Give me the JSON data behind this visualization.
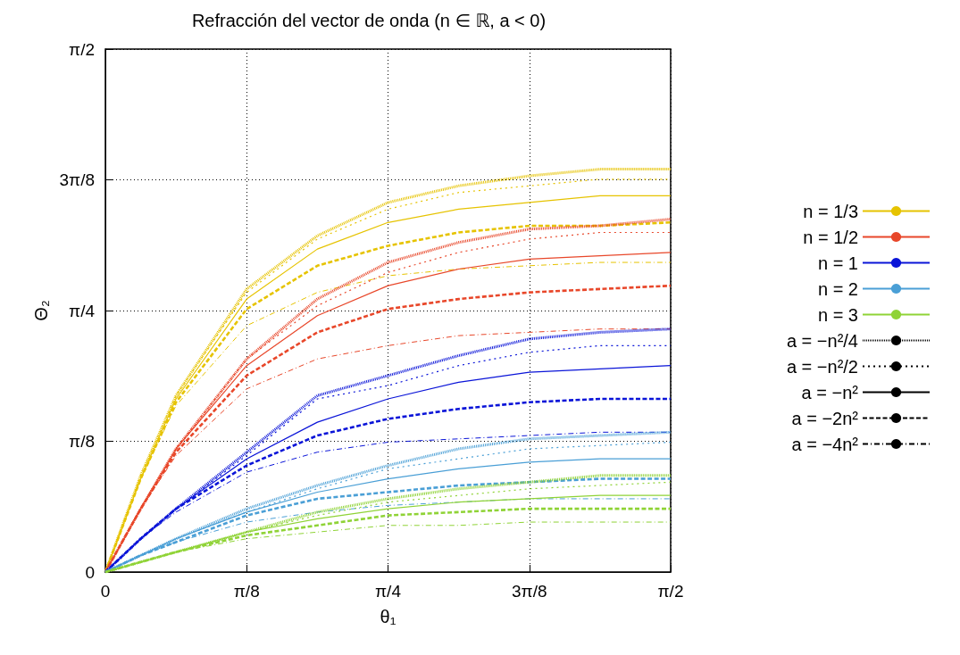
{
  "chart_data": {
    "type": "line",
    "title": "Refracción del vector de onda (n ∈ ℝ, a < 0)",
    "xlabel": "θ₁",
    "ylabel": "Θ₂",
    "x": [
      0,
      0.0982,
      0.1963,
      0.3927,
      0.589,
      0.7854,
      0.9817,
      1.1781,
      1.3744,
      1.5708
    ],
    "xlim": [
      0,
      1.5708
    ],
    "xticks": [
      0,
      {
        "value": 0.3927,
        "label": "π/8"
      },
      {
        "value": 0.7854,
        "label": "π/4"
      },
      {
        "value": 1.1781,
        "label": "3π/8"
      },
      {
        "value": 1.5708,
        "label": "π/2"
      }
    ],
    "ylim": [
      0,
      1.5708
    ],
    "yticks": [
      0,
      {
        "value": 0.3927,
        "label": "π/8"
      },
      {
        "value": 0.7854,
        "label": "π/4"
      },
      {
        "value": 1.1781,
        "label": "3π/8"
      },
      {
        "value": 1.5708,
        "label": "π/2"
      }
    ],
    "grid": true,
    "legend": "right",
    "marker": "none",
    "series": [
      {
        "color": "#e6c300",
        "line_style": "densely_dotted",
        "values": [
          0,
          0.29,
          0.53,
          0.85,
          1.01,
          1.11,
          1.16,
          1.19,
          1.21,
          1.21
        ]
      },
      {
        "color": "#e6c300",
        "line_style": "dotted",
        "values": [
          0,
          0.29,
          0.53,
          0.84,
          1.0,
          1.09,
          1.14,
          1.16,
          1.18,
          1.18
        ]
      },
      {
        "name": "n = 1/3",
        "color": "#e6c300",
        "line_style": "solid",
        "values": [
          0,
          0.28,
          0.52,
          0.82,
          0.97,
          1.05,
          1.09,
          1.11,
          1.13,
          1.13
        ]
      },
      {
        "color": "#e6c300",
        "line_style": "dashed",
        "values": [
          0,
          0.28,
          0.51,
          0.79,
          0.92,
          0.98,
          1.02,
          1.04,
          1.04,
          1.05
        ]
      },
      {
        "color": "#e6c300",
        "line_style": "dashdot",
        "values": [
          0,
          0.28,
          0.5,
          0.74,
          0.84,
          0.89,
          0.91,
          0.92,
          0.93,
          0.93
        ]
      },
      {
        "color": "#e8472a",
        "line_style": "densely_dotted",
        "values": [
          0,
          0.19,
          0.37,
          0.64,
          0.82,
          0.93,
          0.99,
          1.03,
          1.04,
          1.06
        ]
      },
      {
        "color": "#e8472a",
        "line_style": "dotted",
        "values": [
          0,
          0.19,
          0.37,
          0.64,
          0.8,
          0.9,
          0.96,
          1.0,
          1.02,
          1.02
        ]
      },
      {
        "name": "n = 1/2",
        "color": "#e8472a",
        "line_style": "solid",
        "values": [
          0,
          0.19,
          0.37,
          0.62,
          0.77,
          0.86,
          0.91,
          0.94,
          0.95,
          0.96
        ]
      },
      {
        "color": "#e8472a",
        "line_style": "dashed",
        "values": [
          0,
          0.19,
          0.36,
          0.59,
          0.72,
          0.79,
          0.82,
          0.84,
          0.85,
          0.86
        ]
      },
      {
        "color": "#e8472a",
        "line_style": "dashdot",
        "values": [
          0,
          0.19,
          0.35,
          0.55,
          0.64,
          0.68,
          0.71,
          0.72,
          0.73,
          0.73
        ]
      },
      {
        "color": "#0a14d8",
        "line_style": "densely_dotted",
        "values": [
          0,
          0.1,
          0.19,
          0.36,
          0.53,
          0.59,
          0.65,
          0.7,
          0.72,
          0.73
        ]
      },
      {
        "color": "#0a14d8",
        "line_style": "dotted",
        "values": [
          0,
          0.1,
          0.19,
          0.35,
          0.52,
          0.56,
          0.62,
          0.66,
          0.68,
          0.68
        ]
      },
      {
        "name": "n = 1",
        "color": "#0a14d8",
        "line_style": "solid",
        "values": [
          0,
          0.1,
          0.19,
          0.34,
          0.45,
          0.52,
          0.57,
          0.6,
          0.61,
          0.62
        ]
      },
      {
        "color": "#0a14d8",
        "line_style": "dashed",
        "values": [
          0,
          0.1,
          0.19,
          0.32,
          0.41,
          0.46,
          0.49,
          0.51,
          0.52,
          0.52
        ]
      },
      {
        "color": "#0a14d8",
        "line_style": "dashdot",
        "values": [
          0,
          0.1,
          0.18,
          0.3,
          0.36,
          0.39,
          0.4,
          0.41,
          0.42,
          0.42
        ]
      },
      {
        "color": "#4a9fd6",
        "line_style": "densely_dotted",
        "values": [
          0,
          0.05,
          0.1,
          0.19,
          0.26,
          0.32,
          0.37,
          0.4,
          0.41,
          0.42
        ]
      },
      {
        "color": "#4a9fd6",
        "line_style": "dotted",
        "values": [
          0,
          0.05,
          0.1,
          0.18,
          0.25,
          0.31,
          0.34,
          0.37,
          0.38,
          0.39
        ]
      },
      {
        "name": "n = 2",
        "color": "#4a9fd6",
        "line_style": "solid",
        "values": [
          0,
          0.05,
          0.1,
          0.18,
          0.24,
          0.28,
          0.31,
          0.33,
          0.34,
          0.34
        ]
      },
      {
        "color": "#4a9fd6",
        "line_style": "dashed",
        "values": [
          0,
          0.05,
          0.09,
          0.17,
          0.22,
          0.24,
          0.26,
          0.27,
          0.28,
          0.28
        ]
      },
      {
        "color": "#4a9fd6",
        "line_style": "dashdot",
        "values": [
          0,
          0.05,
          0.09,
          0.15,
          0.18,
          0.2,
          0.21,
          0.22,
          0.22,
          0.22
        ]
      },
      {
        "color": "#8fd336",
        "line_style": "densely_dotted",
        "values": [
          0,
          0.03,
          0.06,
          0.12,
          0.18,
          0.22,
          0.25,
          0.27,
          0.29,
          0.29
        ]
      },
      {
        "color": "#8fd336",
        "line_style": "dotted",
        "values": [
          0,
          0.03,
          0.06,
          0.12,
          0.17,
          0.21,
          0.23,
          0.25,
          0.26,
          0.27
        ]
      },
      {
        "name": "n = 3",
        "color": "#8fd336",
        "line_style": "solid",
        "values": [
          0,
          0.03,
          0.06,
          0.12,
          0.16,
          0.19,
          0.21,
          0.22,
          0.23,
          0.23
        ]
      },
      {
        "color": "#8fd336",
        "line_style": "dashed",
        "values": [
          0,
          0.03,
          0.06,
          0.11,
          0.14,
          0.17,
          0.18,
          0.19,
          0.19,
          0.19
        ]
      },
      {
        "color": "#8fd336",
        "line_style": "dashdot",
        "values": [
          0,
          0.03,
          0.06,
          0.1,
          0.12,
          0.14,
          0.14,
          0.15,
          0.15,
          0.15
        ]
      },
      {
        "name": "a = −n²/4",
        "color": "#000000",
        "line_style": "densely_dotted",
        "values": [
          null,
          null,
          null,
          null,
          null,
          null,
          null,
          null,
          null,
          null
        ]
      },
      {
        "name": "a = −n²/2",
        "color": "#000000",
        "line_style": "dotted",
        "values": [
          null,
          null,
          null,
          null,
          null,
          null,
          null,
          null,
          null,
          null
        ]
      },
      {
        "name": "a = −n²",
        "color": "#000000",
        "line_style": "solid",
        "values": [
          null,
          null,
          null,
          null,
          null,
          null,
          null,
          null,
          null,
          null
        ]
      },
      {
        "name": "a = −2n²",
        "color": "#000000",
        "line_style": "dashed",
        "values": [
          null,
          null,
          null,
          null,
          null,
          null,
          null,
          null,
          null,
          null
        ]
      },
      {
        "name": "a = −4n²",
        "color": "#000000",
        "line_style": "dashdot",
        "values": [
          null,
          null,
          null,
          null,
          null,
          null,
          null,
          null,
          null,
          null
        ]
      }
    ]
  }
}
